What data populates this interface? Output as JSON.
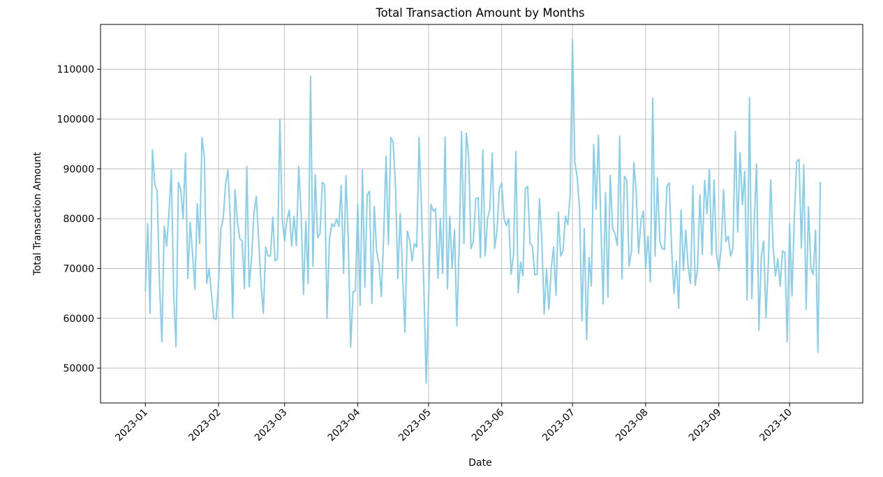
{
  "chart_data": {
    "type": "line",
    "title": "Total Transaction Amount by Months",
    "xlabel": "Date",
    "ylabel": "Total Transaction Amount",
    "x_start": "2023-01-01",
    "x_end": "2023-10-14",
    "xlim": [
      "2022-12-13",
      "2023-11-01"
    ],
    "ylim": [
      43000,
      119000
    ],
    "grid": true,
    "line_color": "#87ceeb",
    "x_ticks": [
      "2023-01-01",
      "2023-02-01",
      "2023-03-01",
      "2023-04-01",
      "2023-05-01",
      "2023-06-01",
      "2023-07-01",
      "2023-08-01",
      "2023-09-01",
      "2023-10-01"
    ],
    "x_tick_labels": [
      "2023-01",
      "2023-02",
      "2023-03",
      "2023-04",
      "2023-05",
      "2023-06",
      "2023-07",
      "2023-08",
      "2023-09",
      "2023-10"
    ],
    "y_ticks": [
      50000,
      60000,
      70000,
      80000,
      90000,
      100000,
      110000
    ],
    "y_tick_labels": [
      "50000",
      "60000",
      "70000",
      "80000",
      "90000",
      "100000",
      "110000"
    ],
    "series": [
      {
        "values": [
          65500,
          79000,
          61000,
          93800,
          87000,
          85500,
          67000,
          55300,
          78500,
          74500,
          81000,
          89800,
          65000,
          54300,
          87300,
          85800,
          80000,
          93200,
          68000,
          79300,
          73000,
          65800,
          83000,
          75000,
          96300,
          92500,
          67000,
          70000,
          65000,
          60000,
          59800,
          67000,
          78000,
          80000,
          87000,
          89800,
          80000,
          60000,
          85800,
          79500,
          76000,
          75500,
          66000,
          90500,
          66300,
          72000,
          81000,
          84500,
          76000,
          67000,
          61000,
          74300,
          72500,
          72500,
          80300,
          71500,
          72000,
          99800,
          80000,
          75500,
          79800,
          81700,
          74500,
          80500,
          74600,
          90500,
          81000,
          64800,
          79500,
          67000,
          108600,
          70400,
          88800,
          76200,
          77000,
          87300,
          86800,
          60000,
          75900,
          79000,
          78400,
          80000,
          78400,
          86700,
          69000,
          88600,
          75400,
          54200,
          65300,
          65500,
          82900,
          62600,
          89800,
          66200,
          84800,
          85500,
          63000,
          82500,
          73500,
          71000,
          64400,
          76500,
          92600,
          74800,
          96300,
          95400,
          86500,
          68000,
          81000,
          69000,
          57200,
          77500,
          75800,
          71500,
          75000,
          74300,
          96300,
          82000,
          66500,
          47000,
          63400,
          82900,
          81500,
          82000,
          68000,
          80000,
          69000,
          96400,
          65900,
          80500,
          70000,
          77800,
          58500,
          74500,
          97500,
          75000,
          97200,
          92500,
          74000,
          75500,
          84000,
          84200,
          72200,
          93800,
          72500,
          80000,
          82000,
          93200,
          74000,
          77500,
          86000,
          87200,
          80000,
          78600,
          80000,
          68800,
          72800,
          93500,
          65100,
          71300,
          68500,
          86000,
          86500,
          75000,
          74500,
          68800,
          68800,
          84000,
          76000,
          60800,
          70000,
          61800,
          70000,
          74300,
          64600,
          81300,
          72500,
          73500,
          80500,
          78800,
          84600,
          116000,
          91300,
          88300,
          82000,
          59500,
          78000,
          55700,
          72200,
          66500,
          94900,
          81900,
          96700,
          79500,
          62900,
          85200,
          64300,
          88700,
          78000,
          77000,
          74600,
          96600,
          67900,
          88500,
          87700,
          70500,
          73500,
          91300,
          85300,
          73000,
          79500,
          81500,
          70000,
          76500,
          67300,
          104200,
          72500,
          88200,
          75400,
          74000,
          73800,
          86500,
          87200,
          74000,
          65000,
          71500,
          62000,
          81700,
          69600,
          77700,
          70400,
          67000,
          86600,
          66600,
          70000,
          84800,
          72800,
          87700,
          81000,
          89900,
          72700,
          87800,
          73000,
          69500,
          74300,
          85800,
          75400,
          76500,
          72500,
          74000,
          97500,
          77300,
          93300,
          82800,
          89500,
          63700,
          104300,
          63900,
          79000,
          91000,
          57600,
          72400,
          75500,
          60200,
          71000,
          87800,
          74600,
          68500,
          72000,
          66400,
          73500,
          73200,
          55300,
          79000,
          64500,
          80000,
          91500,
          91900,
          74100,
          90800,
          61800,
          82400,
          70000,
          68800,
          77700,
          53200,
          87300
        ]
      }
    ]
  }
}
